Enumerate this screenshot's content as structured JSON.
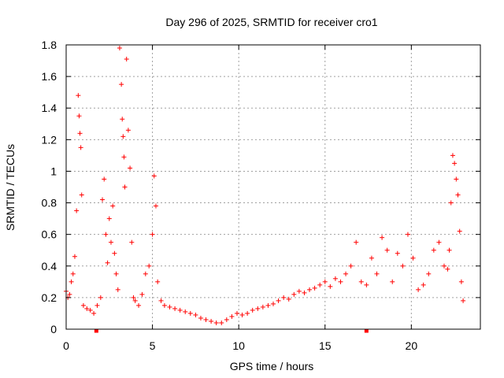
{
  "chart_data": {
    "type": "scatter",
    "title": "Day 296 of 2025, SRMTID for receiver cro1",
    "xlabel": "GPS time / hours",
    "ylabel": "SRMTID / TECUs",
    "xlim": [
      0,
      24
    ],
    "ylim": [
      0,
      1.8
    ],
    "xticks": [
      0,
      5,
      10,
      15,
      20
    ],
    "xtick_labels": [
      "0",
      "5",
      "10",
      "15",
      "20"
    ],
    "yticks": [
      0,
      0.2,
      0.4,
      0.6,
      0.8,
      1,
      1.2,
      1.4,
      1.6,
      1.8
    ],
    "ytick_labels": [
      "0",
      "0.2",
      "0.4",
      "0.6",
      "0.8",
      "1",
      "1.2",
      "1.4",
      "1.6",
      "1.8"
    ],
    "grid": true,
    "marker": "plus",
    "color": "#ff0000",
    "series": [
      {
        "name": "SRMTID",
        "x": [
          0.0,
          0.1,
          0.2,
          0.3,
          0.4,
          0.5,
          0.6,
          0.7,
          0.75,
          0.8,
          0.85,
          0.9,
          1.0,
          1.2,
          1.4,
          1.6,
          1.8,
          2.0,
          2.1,
          2.2,
          2.3,
          2.4,
          2.5,
          2.6,
          2.7,
          2.8,
          2.9,
          3.0,
          3.1,
          3.2,
          3.25,
          3.3,
          3.35,
          3.4,
          3.5,
          3.6,
          3.7,
          3.8,
          3.9,
          4.0,
          4.2,
          4.4,
          4.6,
          4.8,
          5.0,
          5.1,
          5.2,
          5.3,
          5.5,
          5.7,
          6.0,
          6.3,
          6.6,
          6.9,
          7.2,
          7.5,
          7.8,
          8.1,
          8.4,
          8.7,
          9.0,
          9.3,
          9.6,
          9.9,
          10.2,
          10.5,
          10.8,
          11.1,
          11.4,
          11.7,
          12.0,
          12.3,
          12.6,
          12.9,
          13.2,
          13.5,
          13.8,
          14.1,
          14.4,
          14.7,
          15.0,
          15.3,
          15.6,
          15.9,
          16.2,
          16.5,
          16.8,
          17.1,
          17.4,
          17.7,
          18.0,
          18.3,
          18.6,
          18.9,
          19.2,
          19.5,
          19.8,
          20.1,
          20.4,
          20.7,
          21.0,
          21.3,
          21.6,
          21.9,
          22.1,
          22.2,
          22.3,
          22.4,
          22.5,
          22.6,
          22.7,
          22.8,
          22.9,
          23.0
        ],
        "y": [
          0.24,
          0.2,
          0.22,
          0.3,
          0.35,
          0.46,
          0.75,
          1.48,
          1.35,
          1.24,
          1.15,
          0.85,
          0.15,
          0.13,
          0.12,
          0.1,
          0.15,
          0.2,
          0.82,
          0.95,
          0.6,
          0.42,
          0.7,
          0.55,
          0.78,
          0.48,
          0.35,
          0.25,
          1.78,
          1.55,
          1.33,
          1.22,
          1.09,
          0.9,
          1.71,
          1.26,
          1.02,
          0.55,
          0.2,
          0.18,
          0.15,
          0.22,
          0.35,
          0.4,
          0.6,
          0.97,
          0.78,
          0.3,
          0.18,
          0.15,
          0.14,
          0.13,
          0.12,
          0.11,
          0.1,
          0.09,
          0.07,
          0.06,
          0.05,
          0.04,
          0.04,
          0.06,
          0.08,
          0.1,
          0.09,
          0.1,
          0.12,
          0.13,
          0.14,
          0.15,
          0.16,
          0.18,
          0.2,
          0.19,
          0.22,
          0.24,
          0.23,
          0.25,
          0.26,
          0.28,
          0.3,
          0.27,
          0.32,
          0.3,
          0.35,
          0.4,
          0.55,
          0.3,
          0.28,
          0.45,
          0.35,
          0.58,
          0.5,
          0.3,
          0.48,
          0.4,
          0.6,
          0.45,
          0.25,
          0.28,
          0.35,
          0.5,
          0.55,
          0.4,
          0.38,
          0.5,
          0.8,
          1.1,
          1.05,
          0.95,
          0.85,
          0.62,
          0.3,
          0.18
        ]
      }
    ],
    "outliers": [
      {
        "x": 1.75,
        "y": -0.01
      },
      {
        "x": 17.4,
        "y": -0.01
      }
    ]
  }
}
